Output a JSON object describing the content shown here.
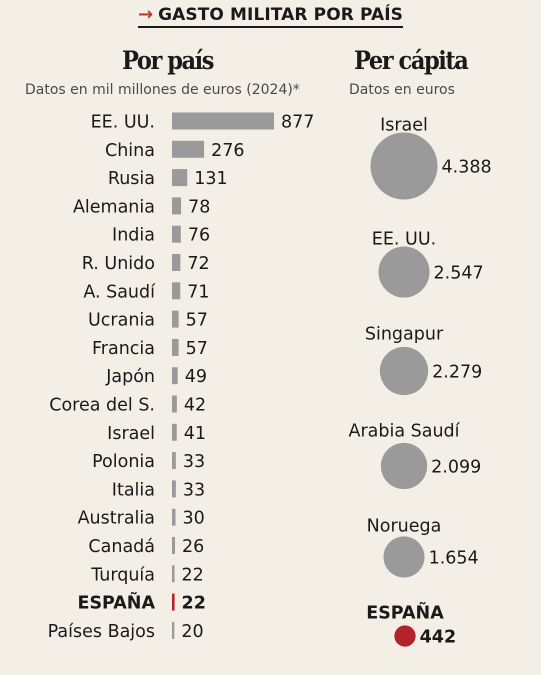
{
  "header": {
    "arrow": "→",
    "title": "GASTO MILITAR POR PAÍS"
  },
  "left_panel": {
    "title": "Por país",
    "subtitle": "Datos en mil millones de euros (2024)*"
  },
  "right_panel": {
    "title": "Per cápita",
    "subtitle": "Datos en euros"
  },
  "colors": {
    "background": "#f4efe6",
    "bar": "#9a9a9a",
    "circle": "#9a9a9a",
    "highlight": "#b3232a",
    "text": "#1a1a1a"
  },
  "chart_data": [
    {
      "type": "bar",
      "orientation": "horizontal",
      "title": "Por país",
      "subtitle": "Datos en mil millones de euros (2024)*",
      "categories": [
        "EE. UU.",
        "China",
        "Rusia",
        "Alemania",
        "India",
        "R. Unido",
        "A. Saudí",
        "Ucrania",
        "Francia",
        "Japón",
        "Corea del S.",
        "Israel",
        "Polonia",
        "Italia",
        "Australia",
        "Canadá",
        "Turquía",
        "ESPAÑA",
        "Países Bajos"
      ],
      "values": [
        877,
        276,
        131,
        78,
        76,
        72,
        71,
        57,
        57,
        49,
        42,
        41,
        33,
        33,
        30,
        26,
        22,
        22,
        20
      ],
      "value_labels": [
        "877",
        "276",
        "131",
        "78",
        "76",
        "72",
        "71",
        "57",
        "57",
        "49",
        "42",
        "41",
        "33",
        "33",
        "30",
        "26",
        "22",
        "22",
        "20"
      ],
      "highlight": "ESPAÑA",
      "xlim": [
        0,
        877
      ]
    },
    {
      "type": "bubble",
      "title": "Per cápita",
      "subtitle": "Datos en euros",
      "categories": [
        "Israel",
        "EE. UU.",
        "Singapur",
        "Arabia Saudí",
        "Noruega",
        "ESPAÑA"
      ],
      "values": [
        4388,
        2547,
        2279,
        2099,
        1654,
        442
      ],
      "value_labels": [
        "4.388",
        "2.547",
        "2.279",
        "2.099",
        "1.654",
        "442"
      ],
      "highlight": "ESPAÑA"
    }
  ]
}
